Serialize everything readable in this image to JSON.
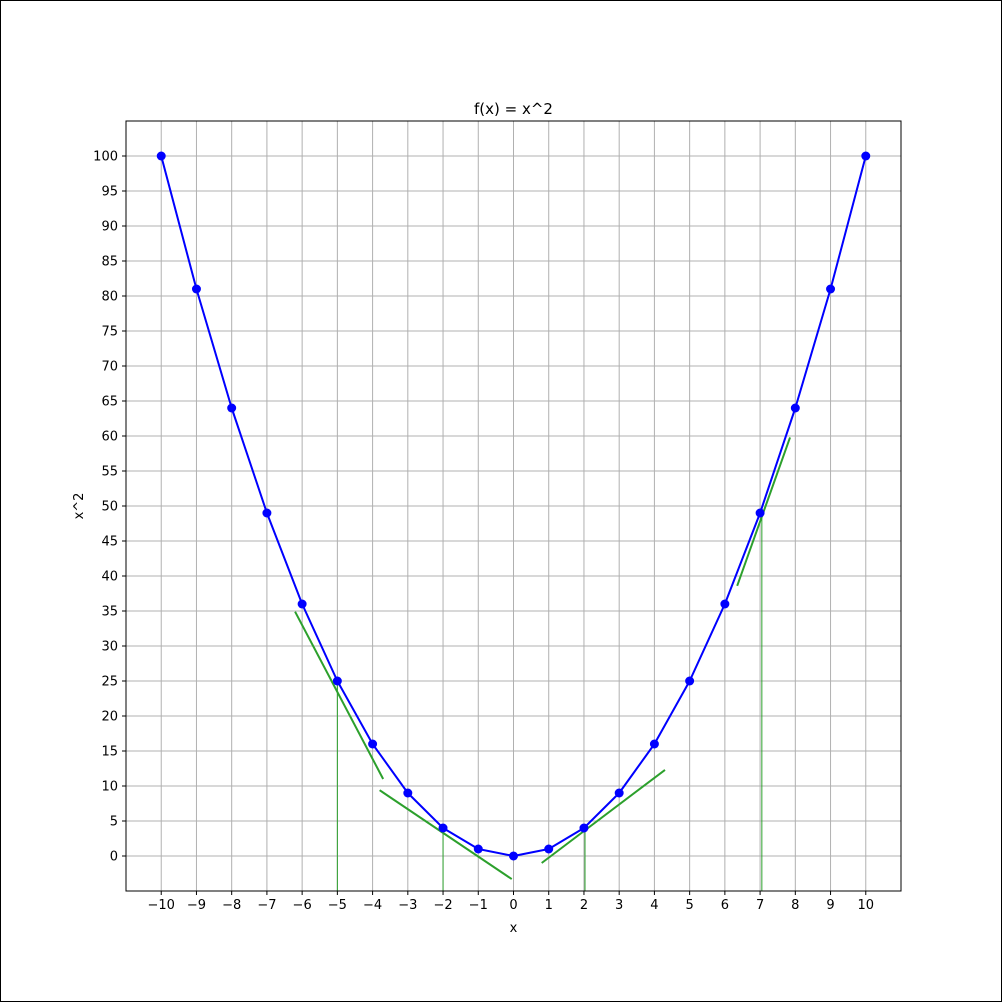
{
  "chart_data": {
    "type": "line",
    "title": "f(x) = x^2",
    "xlabel": "x",
    "ylabel": "x^2",
    "xlim": [
      -11,
      11
    ],
    "ylim": [
      -5,
      105
    ],
    "xticks": [
      -10,
      -9,
      -8,
      -7,
      -6,
      -5,
      -4,
      -3,
      -2,
      -1,
      0,
      1,
      2,
      3,
      4,
      5,
      6,
      7,
      8,
      9,
      10
    ],
    "yticks": [
      0,
      5,
      10,
      15,
      20,
      25,
      30,
      35,
      40,
      45,
      50,
      55,
      60,
      65,
      70,
      75,
      80,
      85,
      90,
      95,
      100
    ],
    "grid": true,
    "series": [
      {
        "color": "#0000ff",
        "x": [
          -10,
          -9,
          -8,
          -7,
          -6,
          -5,
          -4,
          -3,
          -2,
          -1,
          0,
          1,
          2,
          3,
          4,
          5,
          6,
          7,
          8,
          9,
          10
        ],
        "y": [
          100,
          81,
          64,
          49,
          36,
          25,
          16,
          9,
          4,
          1,
          0,
          1,
          4,
          9,
          16,
          25,
          36,
          49,
          64,
          81,
          100
        ]
      }
    ],
    "tangents": [
      {
        "x0": -5,
        "x1": -6.2,
        "y1": 34.9,
        "x2": -3.7,
        "y2": 11.0
      },
      {
        "x0": -2,
        "x1": -3.8,
        "y1": 9.4,
        "x2": -0.05,
        "y2": -3.3
      },
      {
        "x0": 2.03,
        "x1": 0.8,
        "y1": -1.0,
        "x2": 4.3,
        "y2": 12.3
      },
      {
        "x0": 7.05,
        "x1": 6.35,
        "y1": 38.6,
        "x2": 7.85,
        "y2": 59.8
      }
    ],
    "tangent_color": "#2ca02c",
    "drop_line_color": "#2ca02c"
  }
}
